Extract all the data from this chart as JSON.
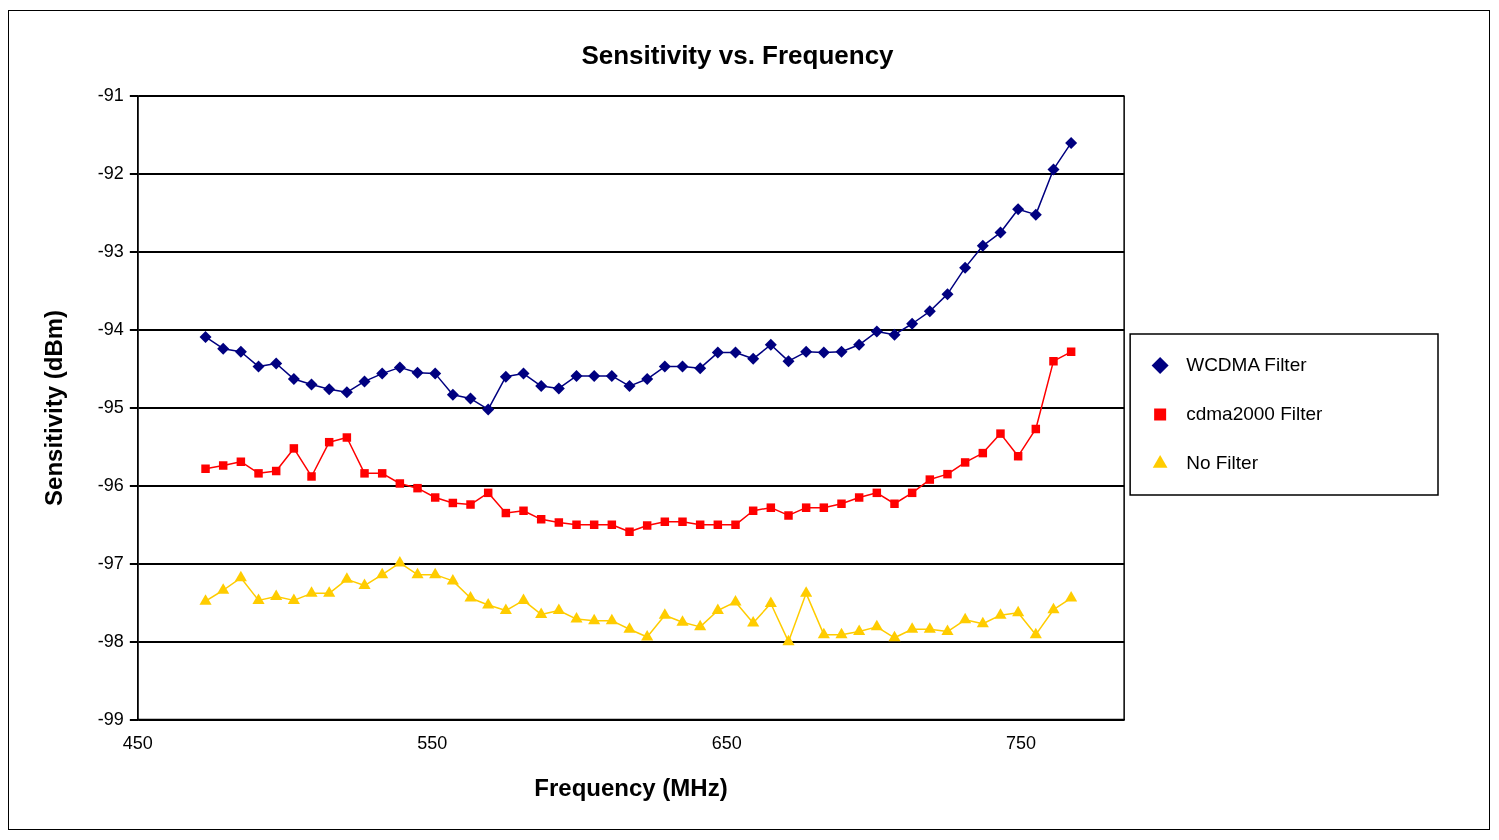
{
  "chart_data": {
    "type": "line",
    "title": "Sensitivity vs. Frequency",
    "xlabel": "Frequency (MHz)",
    "ylabel": "Sensitivity (dBm)",
    "x": [
      473,
      479,
      485,
      491,
      497,
      503,
      509,
      515,
      521,
      527,
      533,
      539,
      545,
      551,
      557,
      563,
      569,
      575,
      581,
      587,
      593,
      599,
      605,
      611,
      617,
      623,
      629,
      635,
      641,
      647,
      653,
      659,
      665,
      671,
      677,
      683,
      689,
      695,
      701,
      707,
      713,
      719,
      725,
      731,
      737,
      743,
      749,
      755,
      761,
      767
    ],
    "series": [
      {
        "name": "WCDMA Filter",
        "color": "#000080",
        "marker": "diamond",
        "values": [
          -94.09,
          -94.24,
          -94.28,
          -94.47,
          -94.43,
          -94.63,
          -94.7,
          -94.76,
          -94.8,
          -94.66,
          -94.56,
          -94.48,
          -94.55,
          -94.56,
          -94.83,
          -94.88,
          -95.02,
          -94.6,
          -94.56,
          -94.72,
          -94.75,
          -94.59,
          -94.59,
          -94.59,
          -94.72,
          -94.63,
          -94.47,
          -94.47,
          -94.49,
          -94.29,
          -94.29,
          -94.37,
          -94.19,
          -94.4,
          -94.28,
          -94.29,
          -94.28,
          -94.19,
          -94.02,
          -94.06,
          -93.92,
          -93.76,
          -93.54,
          -93.2,
          -92.92,
          -92.75,
          -92.45,
          -92.52,
          -91.94,
          -91.6
        ]
      },
      {
        "name": "cdma2000 Filter",
        "color": "#ff0000",
        "marker": "square",
        "values": [
          -95.78,
          -95.74,
          -95.69,
          -95.84,
          -95.81,
          -95.52,
          -95.88,
          -95.44,
          -95.38,
          -95.84,
          -95.84,
          -95.97,
          -96.03,
          -96.15,
          -96.22,
          -96.24,
          -96.09,
          -96.35,
          -96.32,
          -96.43,
          -96.47,
          -96.5,
          -96.5,
          -96.5,
          -96.59,
          -96.51,
          -96.46,
          -96.46,
          -96.5,
          -96.5,
          -96.5,
          -96.32,
          -96.28,
          -96.38,
          -96.28,
          -96.28,
          -96.23,
          -96.15,
          -96.09,
          -96.23,
          -96.09,
          -95.92,
          -95.85,
          -95.7,
          -95.58,
          -95.33,
          -95.62,
          -95.27,
          -94.4,
          -94.28
        ]
      },
      {
        "name": "No Filter",
        "color": "#ffcc00",
        "marker": "triangle",
        "values": [
          -97.48,
          -97.34,
          -97.18,
          -97.47,
          -97.42,
          -97.47,
          -97.38,
          -97.38,
          -97.2,
          -97.28,
          -97.14,
          -96.99,
          -97.14,
          -97.14,
          -97.22,
          -97.44,
          -97.53,
          -97.6,
          -97.47,
          -97.65,
          -97.6,
          -97.71,
          -97.73,
          -97.73,
          -97.84,
          -97.94,
          -97.66,
          -97.75,
          -97.81,
          -97.6,
          -97.49,
          -97.76,
          -97.51,
          -98.0,
          -97.38,
          -97.91,
          -97.91,
          -97.87,
          -97.81,
          -97.95,
          -97.84,
          -97.84,
          -97.87,
          -97.72,
          -97.77,
          -97.66,
          -97.63,
          -97.91,
          -97.59,
          -97.44
        ]
      }
    ],
    "xlim": [
      450,
      785
    ],
    "xticks": [
      450,
      550,
      650,
      750
    ],
    "ylim": [
      -99,
      -91
    ],
    "yticks": [
      -99,
      -98,
      -97,
      -96,
      -95,
      -94,
      -93,
      -92,
      -91
    ],
    "grid": "y",
    "legend": "right",
    "line_style": "solid"
  }
}
